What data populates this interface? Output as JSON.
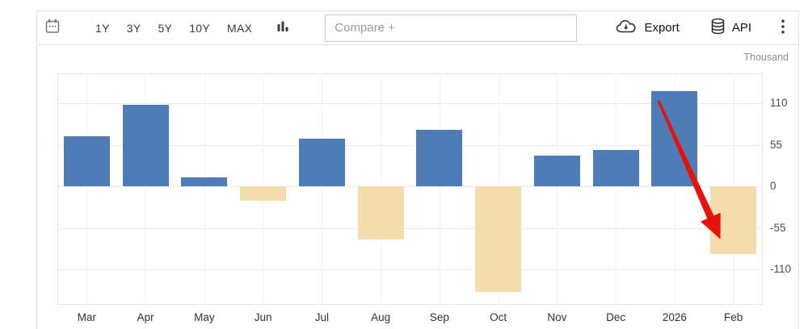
{
  "toolbar": {
    "calendar_icon": "calendar",
    "range_buttons": [
      "1Y",
      "3Y",
      "5Y",
      "10Y",
      "MAX"
    ],
    "chart_type_icon": "column-chart",
    "compare_placeholder": "Compare +",
    "export_label": "Export",
    "export_icon": "cloud-download",
    "api_label": "API",
    "api_icon": "database",
    "more_menu_icon": "kebab-menu"
  },
  "chart_data": {
    "type": "bar",
    "unit_label": "Thousand",
    "categories": [
      "Mar",
      "Apr",
      "May",
      "Jun",
      "Jul",
      "Aug",
      "Sep",
      "Oct",
      "Nov",
      "Dec",
      "2026",
      "Feb"
    ],
    "values": [
      67,
      108,
      12,
      -19,
      63,
      -70,
      75,
      -140,
      41,
      48,
      127,
      -90
    ],
    "yticks": [
      110,
      55,
      0,
      -55,
      -110
    ],
    "ylim": [
      -157,
      150
    ],
    "grid": true,
    "legend": "none",
    "colors": {
      "positive_bar": "#4d7cb7",
      "negative_bar": "#f3ddad",
      "grid": "#eaeaea",
      "axis_label": "#4d4d4d",
      "annotation_red": "#e8120a"
    },
    "annotation": {
      "type": "arrow",
      "color": "#e8120a",
      "from": {
        "category_index": 10,
        "dx": -20,
        "value": 114
      },
      "to": {
        "category_index": 11,
        "dx": -16,
        "value": -70
      }
    }
  }
}
